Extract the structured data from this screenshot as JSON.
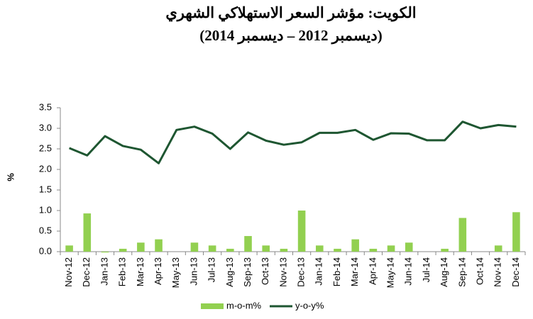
{
  "chart_data": {
    "type": "combo",
    "title": "الكويت: مؤشر السعر الاستهلاكي الشهري",
    "subtitle": "(ديسمبر 2012 – ديسمبر 2014)",
    "y_label": "%",
    "categories": [
      "Nov-12",
      "Dec-12",
      "Jan-13",
      "Feb-13",
      "Mar-13",
      "Apr-13",
      "May-13",
      "Jun-13",
      "Jul-13",
      "Aug-13",
      "Sep-13",
      "Oct-13",
      "Nov-13",
      "Dec-13",
      "Jan-14",
      "Feb-14",
      "Mar-14",
      "Apr-14",
      "May-14",
      "Jun-14",
      "Jul-14",
      "Aug-14",
      "Sep-14",
      "Oct-14",
      "Nov-14",
      "Dec-14"
    ],
    "series": [
      {
        "name": "m-o-m%",
        "type": "bar",
        "color": "#92d050",
        "values": [
          0.15,
          0.93,
          -0.02,
          0.07,
          0.22,
          0.3,
          0.0,
          0.22,
          0.15,
          0.07,
          0.38,
          0.15,
          0.07,
          1.0,
          0.15,
          0.07,
          0.3,
          0.07,
          0.15,
          0.22,
          0.0,
          0.07,
          0.82,
          0.0,
          0.15,
          0.96
        ]
      },
      {
        "name": "y-o-y%",
        "type": "line",
        "color": "#1e5631",
        "values": [
          2.52,
          2.34,
          2.81,
          2.57,
          2.48,
          2.15,
          2.96,
          3.04,
          2.87,
          2.5,
          2.9,
          2.7,
          2.6,
          2.66,
          2.89,
          2.89,
          2.96,
          2.72,
          2.88,
          2.87,
          2.71,
          2.71,
          3.16,
          3.0,
          3.08,
          3.04
        ]
      }
    ],
    "ylim": [
      0,
      3.5
    ],
    "yticks": [
      {
        "value": 0,
        "label": "0.0"
      },
      {
        "value": 0.5,
        "label": "0.5"
      },
      {
        "value": 1,
        "label": "1.0"
      },
      {
        "value": 1.5,
        "label": "1.5"
      },
      {
        "value": 2,
        "label": "2.0"
      },
      {
        "value": 2.5,
        "label": "2.5"
      },
      {
        "value": 3,
        "label": "3.0"
      },
      {
        "value": 3.5,
        "label": "3.5"
      }
    ],
    "grid": false,
    "legend": "bottom"
  }
}
